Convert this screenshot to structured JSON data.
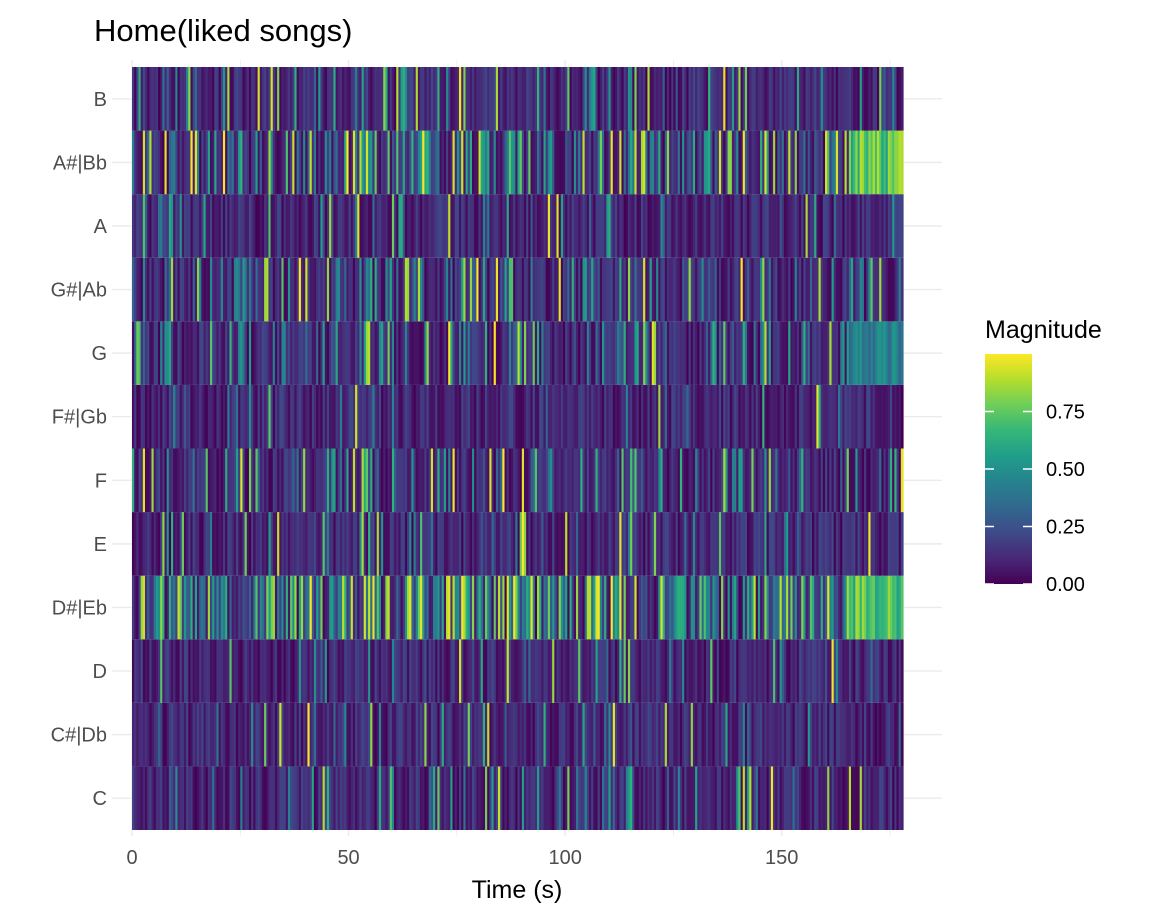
{
  "chart_data": {
    "type": "heatmap",
    "title": "Home(liked songs)",
    "xlabel": "Time (s)",
    "ylabel": "",
    "xlim": [
      0,
      178
    ],
    "x_ticks": [
      "0",
      "50",
      "100",
      "150"
    ],
    "y_categories": [
      "C",
      "C#|Db",
      "D",
      "D#|Eb",
      "E",
      "F",
      "F#|Gb",
      "G",
      "G#|Ab",
      "A",
      "A#|Bb",
      "B"
    ],
    "colorscale": "viridis",
    "color_range": [
      0,
      1
    ],
    "grid": true,
    "legend": {
      "title": "Magnitude",
      "placement": "right",
      "ticks": [
        "0.00",
        "0.25",
        "0.50",
        "0.75"
      ]
    },
    "pitch_profile": {
      "C": 0.12,
      "C#|Db": 0.1,
      "D": 0.08,
      "D#|Eb": 0.55,
      "E": 0.08,
      "F": 0.2,
      "F#|Gb": 0.08,
      "G": 0.22,
      "G#|Ab": 0.22,
      "A": 0.1,
      "A#|Bb": 0.45,
      "B": 0.1
    }
  }
}
